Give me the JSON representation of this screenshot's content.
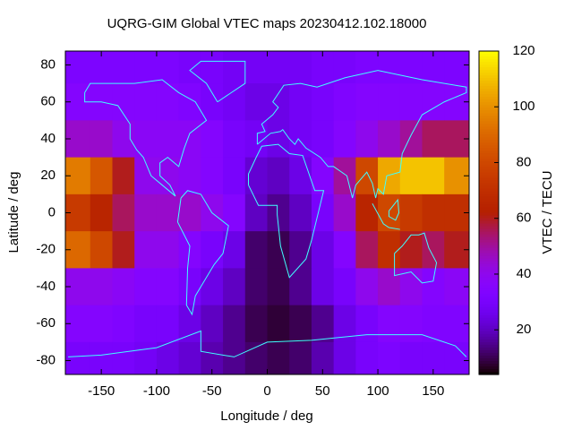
{
  "chart_data": {
    "type": "heatmap",
    "title": "UQRG-GIM Global VTEC maps 20230412.102.18000",
    "xlabel": "Longitude / deg",
    "ylabel": "Latitude / deg",
    "cblabel": "VTEC / TECU",
    "x": [
      -170,
      -150,
      -130,
      -110,
      -90,
      -70,
      -50,
      -30,
      -10,
      10,
      30,
      50,
      70,
      90,
      110,
      130,
      150,
      170
    ],
    "y": [
      80,
      60,
      40,
      20,
      0,
      -20,
      -40,
      -60,
      -80
    ],
    "z": [
      [
        32,
        32,
        32,
        32,
        32,
        30,
        30,
        28,
        28,
        28,
        28,
        30,
        30,
        32,
        32,
        32,
        32,
        32
      ],
      [
        35,
        35,
        35,
        35,
        35,
        33,
        30,
        28,
        25,
        25,
        28,
        30,
        33,
        35,
        35,
        35,
        35,
        35
      ],
      [
        45,
        45,
        40,
        38,
        38,
        38,
        35,
        30,
        28,
        25,
        28,
        30,
        35,
        40,
        45,
        50,
        55,
        55
      ],
      [
        95,
        85,
        60,
        40,
        40,
        38,
        35,
        30,
        22,
        20,
        25,
        35,
        50,
        80,
        105,
        110,
        110,
        100
      ],
      [
        75,
        65,
        55,
        45,
        45,
        45,
        40,
        35,
        20,
        15,
        20,
        30,
        45,
        65,
        80,
        75,
        70,
        70
      ],
      [
        90,
        80,
        60,
        40,
        40,
        35,
        30,
        25,
        12,
        10,
        15,
        25,
        35,
        55,
        70,
        60,
        55,
        60
      ],
      [
        40,
        40,
        38,
        35,
        35,
        30,
        25,
        20,
        12,
        10,
        15,
        25,
        30,
        40,
        45,
        40,
        35,
        38
      ],
      [
        35,
        35,
        33,
        30,
        30,
        25,
        20,
        15,
        10,
        8,
        10,
        15,
        25,
        30,
        35,
        35,
        33,
        33
      ],
      [
        30,
        30,
        30,
        28,
        25,
        22,
        18,
        15,
        12,
        10,
        12,
        18,
        25,
        30,
        32,
        30,
        30,
        30
      ]
    ],
    "xlim": [
      -182.5,
      182.5
    ],
    "ylim": [
      -87.5,
      87.5
    ],
    "zlim": [
      4,
      120
    ],
    "xticks": [
      -150,
      -100,
      -50,
      0,
      50,
      100,
      150
    ],
    "yticks": [
      -80,
      -60,
      -40,
      -20,
      0,
      20,
      40,
      60,
      80
    ],
    "cbticks": [
      20,
      40,
      60,
      80,
      100,
      120
    ],
    "palette": "gnuplot"
  }
}
